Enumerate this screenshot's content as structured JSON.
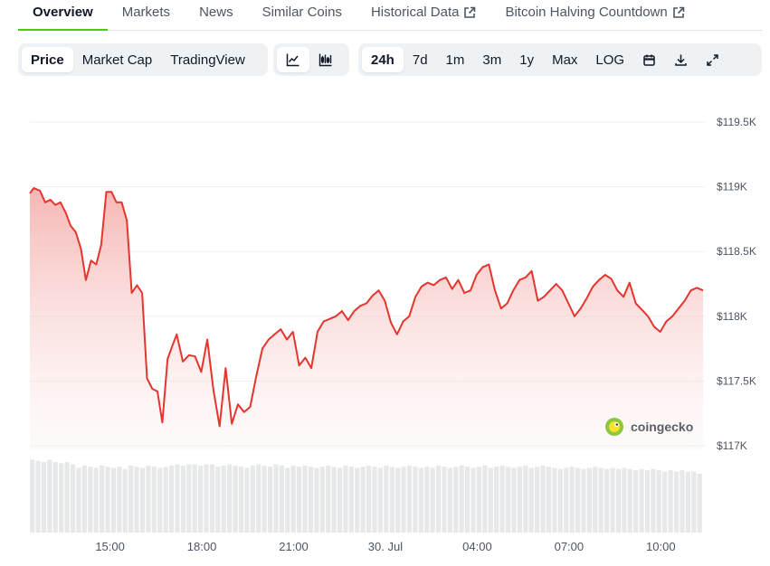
{
  "tabs": [
    {
      "label": "Overview",
      "active": true,
      "external": false
    },
    {
      "label": "Markets",
      "active": false,
      "external": false
    },
    {
      "label": "News",
      "active": false,
      "external": false
    },
    {
      "label": "Similar Coins",
      "active": false,
      "external": false
    },
    {
      "label": "Historical Data",
      "active": false,
      "external": true
    },
    {
      "label": "Bitcoin Halving Countdown",
      "active": false,
      "external": true
    }
  ],
  "toolbar": {
    "metric_buttons": [
      "Price",
      "Market Cap",
      "TradingView"
    ],
    "metric_selected": "Price",
    "chart_style_icons": [
      "line-chart-icon",
      "candlestick-chart-icon"
    ],
    "chart_style_selected": "line-chart-icon",
    "range_buttons": [
      "24h",
      "7d",
      "1m",
      "3m",
      "1y",
      "Max",
      "LOG"
    ],
    "range_selected": "24h",
    "action_icons": [
      "calendar-icon",
      "download-icon",
      "expand-icon"
    ]
  },
  "watermark": "coingecko",
  "colors": {
    "accent_green": "#4bcc00",
    "line_red": "#e5352f",
    "area_fill": "#f6bdbb",
    "volume_bar": "#e6e8ea"
  },
  "chart_data": {
    "type": "area",
    "title": "",
    "xlabel": "",
    "ylabel": "",
    "ylim": [
      116950,
      119600
    ],
    "y_ticks": [
      {
        "value": 119500,
        "label": "$119.5K"
      },
      {
        "value": 119000,
        "label": "$119K"
      },
      {
        "value": 118500,
        "label": "$118.5K"
      },
      {
        "value": 118000,
        "label": "$118K"
      },
      {
        "value": 117500,
        "label": "$117.5K"
      },
      {
        "value": 117000,
        "label": "$117K"
      }
    ],
    "x_ticks": [
      {
        "hours": 2.62,
        "label": "15:00"
      },
      {
        "hours": 5.62,
        "label": "18:00"
      },
      {
        "hours": 8.62,
        "label": "21:00"
      },
      {
        "hours": 11.62,
        "label": "30. Jul"
      },
      {
        "hours": 14.62,
        "label": "04:00"
      },
      {
        "hours": 17.62,
        "label": "07:00"
      },
      {
        "hours": 20.62,
        "label": "10:00"
      }
    ],
    "x_unit": "hours",
    "grid": true,
    "series": [
      {
        "x": [
          0,
          0.13,
          0.33,
          0.5,
          0.67,
          0.83,
          1.0,
          1.17,
          1.33,
          1.5,
          1.67,
          1.83,
          2.0,
          2.17,
          2.33,
          2.5,
          2.67,
          2.83,
          3.0,
          3.17,
          3.33,
          3.5,
          3.67,
          3.83,
          4.0,
          4.17,
          4.33,
          4.5,
          4.67,
          4.8,
          5.0,
          5.2,
          5.4,
          5.6,
          5.8,
          6.0,
          6.2,
          6.4,
          6.6,
          6.8,
          7.0,
          7.2,
          7.4,
          7.6,
          7.8,
          8.0,
          8.2,
          8.4,
          8.6,
          8.8,
          9.0,
          9.2,
          9.4,
          9.6,
          9.8,
          10.0,
          10.2,
          10.4,
          10.6,
          10.8,
          11.0,
          11.2,
          11.4,
          11.6,
          11.8,
          12.0,
          12.2,
          12.4,
          12.6,
          12.8,
          13.0,
          13.2,
          13.4,
          13.6,
          13.8,
          14.0,
          14.2,
          14.4,
          14.6,
          14.8,
          15.0,
          15.2,
          15.4,
          15.6,
          15.8,
          16.0,
          16.2,
          16.4,
          16.6,
          16.8,
          17.0,
          17.2,
          17.4,
          17.6,
          17.8,
          18.0,
          18.2,
          18.4,
          18.6,
          18.8,
          19.0,
          19.2,
          19.4,
          19.6,
          19.8,
          20.0,
          20.2,
          20.4,
          20.6,
          20.8,
          21.0,
          21.2,
          21.4,
          21.6,
          21.8,
          22.0
        ],
        "values": [
          118950,
          118990,
          118970,
          118880,
          118900,
          118860,
          118880,
          118800,
          118700,
          118650,
          118520,
          118280,
          118430,
          118400,
          118550,
          118960,
          118960,
          118880,
          118880,
          118740,
          118180,
          118240,
          118180,
          117520,
          117440,
          117420,
          117180,
          117670,
          117780,
          117860,
          117650,
          117700,
          117690,
          117570,
          117820,
          117430,
          117150,
          117600,
          117170,
          117320,
          117260,
          117300,
          117540,
          117750,
          117820,
          117860,
          117900,
          117820,
          117880,
          117620,
          117680,
          117600,
          117880,
          117960,
          117980,
          118000,
          118040,
          117970,
          118040,
          118080,
          118100,
          118160,
          118200,
          118120,
          117950,
          117860,
          117960,
          118000,
          118150,
          118230,
          118260,
          118240,
          118280,
          118300,
          118210,
          118280,
          118180,
          118200,
          118320,
          118380,
          118400,
          118200,
          118060,
          118100,
          118200,
          118280,
          118300,
          118350,
          118120,
          118150,
          118200,
          118250,
          118200,
          118100,
          118000,
          118060,
          118140,
          118230,
          118280,
          118320,
          118290,
          118200,
          118150,
          118260,
          118100,
          118050,
          118000,
          117920,
          117880,
          117960,
          118000,
          118060,
          118120,
          118200,
          118220,
          118200
        ],
        "volume_relative": [
          0.62,
          0.61,
          0.6,
          0.62,
          0.6,
          0.59,
          0.6,
          0.58,
          0.55,
          0.57,
          0.56,
          0.55,
          0.57,
          0.56,
          0.55,
          0.56,
          0.54,
          0.57,
          0.56,
          0.55,
          0.57,
          0.56,
          0.55,
          0.56,
          0.57,
          0.58,
          0.57,
          0.58,
          0.58,
          0.57,
          0.58,
          0.58,
          0.56,
          0.57,
          0.58,
          0.57,
          0.56,
          0.55,
          0.57,
          0.58,
          0.57,
          0.56,
          0.58,
          0.57,
          0.55,
          0.57,
          0.56,
          0.57,
          0.56,
          0.55,
          0.56,
          0.57,
          0.56,
          0.55,
          0.57,
          0.56,
          0.55,
          0.56,
          0.57,
          0.56,
          0.55,
          0.57,
          0.56,
          0.55,
          0.56,
          0.57,
          0.56,
          0.55,
          0.56,
          0.55,
          0.57,
          0.56,
          0.55,
          0.56,
          0.57,
          0.56,
          0.55,
          0.56,
          0.57,
          0.55,
          0.56,
          0.57,
          0.56,
          0.55,
          0.56,
          0.57,
          0.55,
          0.56,
          0.57,
          0.56,
          0.55,
          0.54,
          0.55,
          0.56,
          0.55,
          0.54,
          0.55,
          0.56,
          0.55,
          0.54,
          0.55,
          0.54,
          0.55,
          0.54,
          0.53,
          0.54,
          0.53,
          0.54,
          0.53,
          0.52,
          0.53,
          0.52,
          0.53,
          0.52,
          0.52,
          0.5
        ]
      }
    ]
  }
}
